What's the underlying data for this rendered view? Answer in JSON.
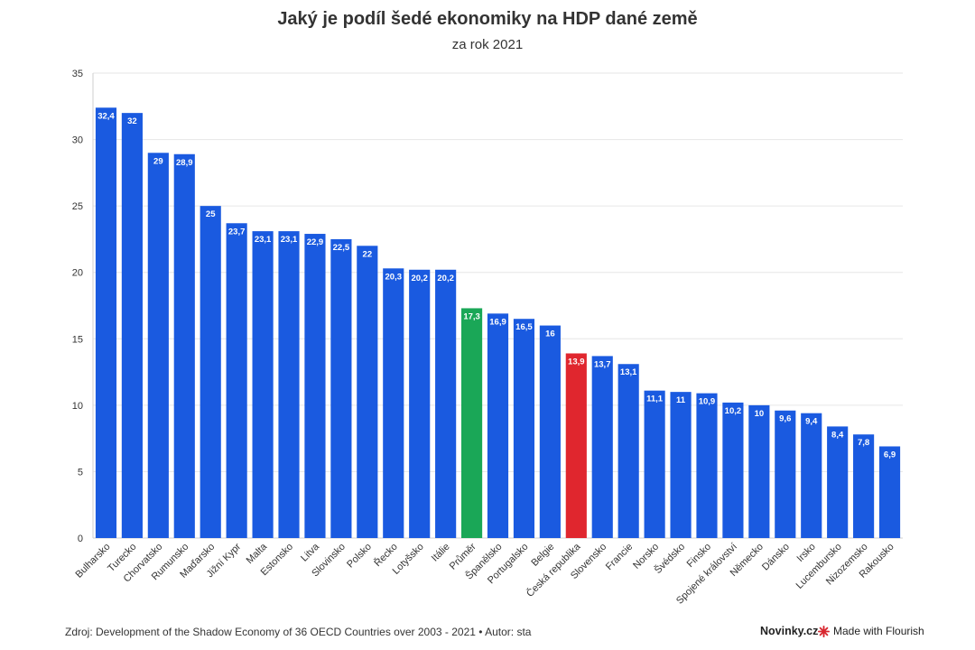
{
  "header": {
    "title": "Jaký je podíl šedé ekonomiky na HDP dané země",
    "subtitle": "za rok 2021"
  },
  "footer": {
    "source": "Zdroj: Development of the Shadow Economy of 36 OECD Countries over 2003 - 2021 • Autor: sta",
    "brand": "Novinky.cz",
    "flourish": "Made with Flourish",
    "flourish_icon": "flourish-star-icon"
  },
  "colors": {
    "default": "#1a5ae0",
    "average": "#1aa757",
    "highlight": "#e0262e",
    "grid": "#e6e6e6",
    "axis_text": "#333333"
  },
  "chart_data": {
    "type": "bar",
    "title": "Jaký je podíl šedé ekonomiky na HDP dané země",
    "subtitle": "za rok 2021",
    "xlabel": "",
    "ylabel": "",
    "ylim": [
      0,
      35
    ],
    "yticks": [
      0,
      5,
      10,
      15,
      20,
      25,
      30,
      35
    ],
    "grid": true,
    "categories": [
      "Bulharsko",
      "Turecko",
      "Chorvatsko",
      "Rumunsko",
      "Maďarsko",
      "Jižní Kypr",
      "Malta",
      "Estonsko",
      "Litva",
      "Slovinsko",
      "Polsko",
      "Řecko",
      "Lotyšsko",
      "Itálie",
      "Průměr",
      "Španělsko",
      "Portugalsko",
      "Belgie",
      "Česká republika",
      "Slovensko",
      "Francie",
      "Norsko",
      "Švédsko",
      "Finsko",
      "Spojené království",
      "Německo",
      "Dánsko",
      "Irsko",
      "Lucembursko",
      "Nizozemsko",
      "Rakousko"
    ],
    "values": [
      32.4,
      32,
      29,
      28.9,
      25,
      23.7,
      23.1,
      23.1,
      22.9,
      22.5,
      22,
      20.3,
      20.2,
      20.2,
      17.3,
      16.9,
      16.5,
      16,
      13.9,
      13.7,
      13.1,
      11.1,
      11,
      10.9,
      10.2,
      10,
      9.6,
      9.4,
      8.4,
      7.8,
      6.9
    ],
    "labels": [
      "32,4",
      "32",
      "29",
      "28,9",
      "25",
      "23,7",
      "23,1",
      "23,1",
      "22,9",
      "22,5",
      "22",
      "20,3",
      "20,2",
      "20,2",
      "17,3",
      "16,9",
      "16,5",
      "16",
      "13,9",
      "13,7",
      "13,1",
      "11,1",
      "11",
      "10,9",
      "10,2",
      "10",
      "9,6",
      "9,4",
      "8,4",
      "7,8",
      "6,9"
    ],
    "special": {
      "Průměr": "average",
      "Česká republika": "highlight"
    }
  }
}
